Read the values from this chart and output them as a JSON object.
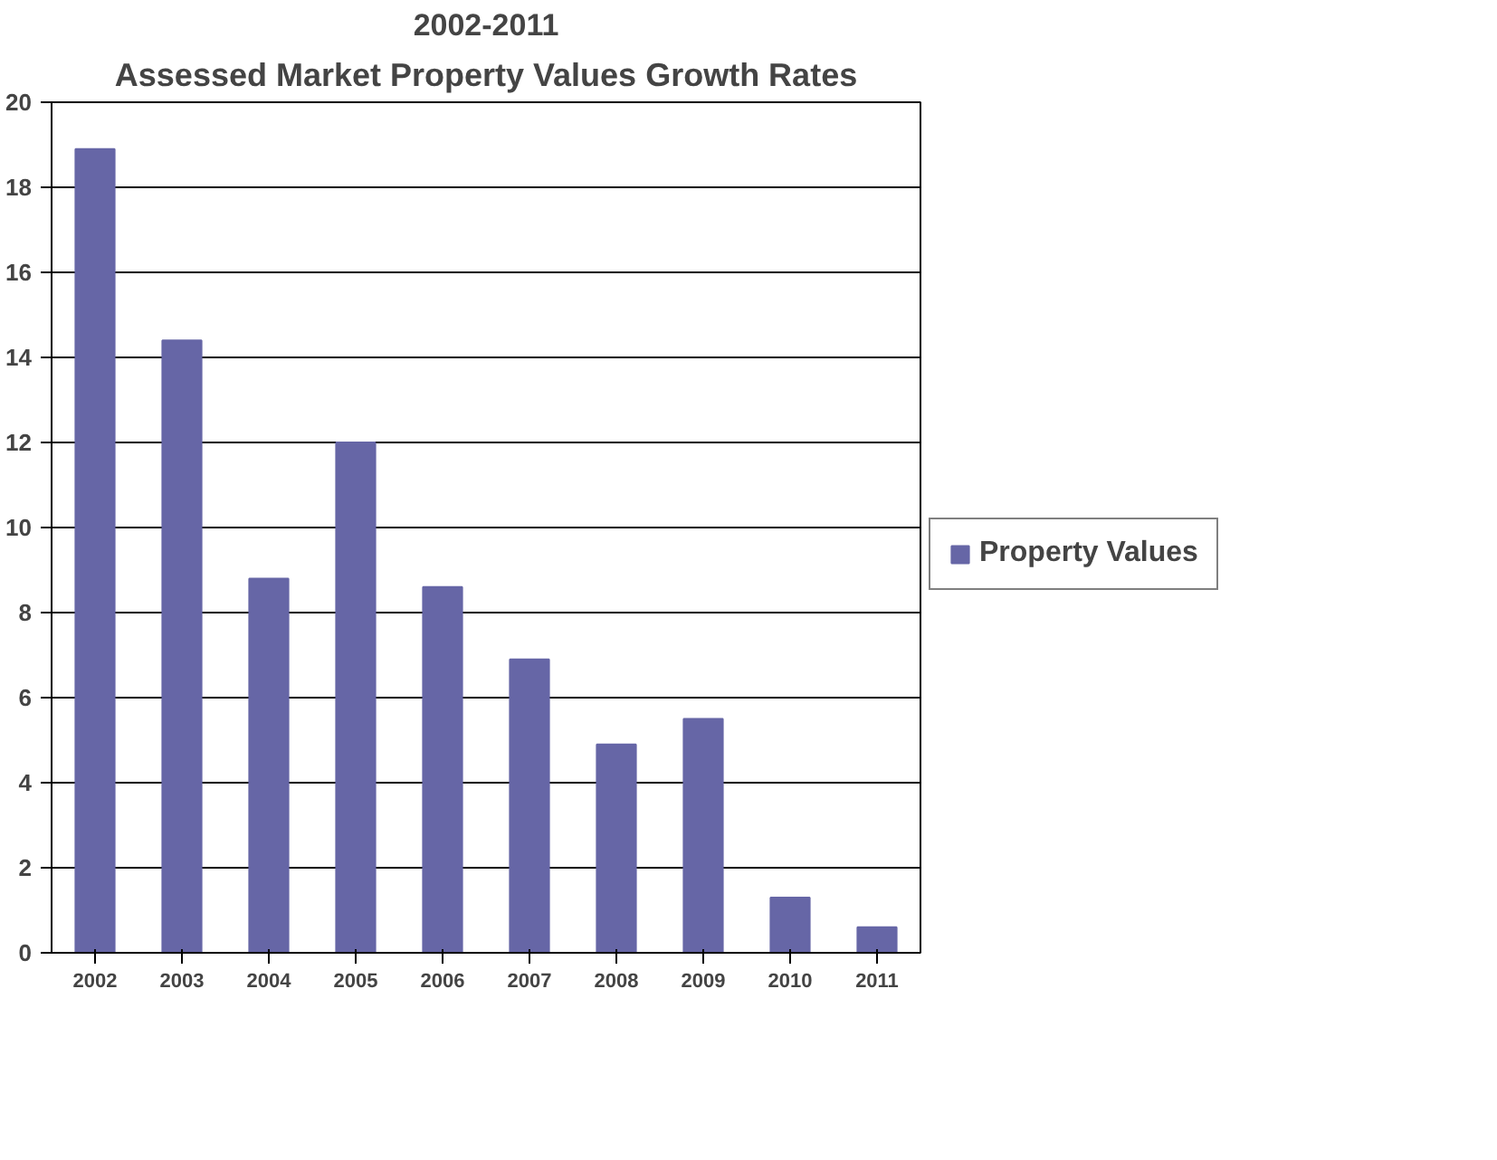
{
  "chart_data": {
    "type": "bar",
    "title": "2002-2011",
    "subtitle": "Assessed Market Property Values Growth Rates",
    "categories": [
      "2002",
      "2003",
      "2004",
      "2005",
      "2006",
      "2007",
      "2008",
      "2009",
      "2010",
      "2011"
    ],
    "series": [
      {
        "name": "Property Values",
        "color": "#6666a6",
        "values": [
          18.9,
          14.4,
          8.8,
          12.0,
          8.6,
          6.9,
          4.9,
          5.5,
          1.3,
          0.6
        ]
      }
    ],
    "ylim": [
      0,
      20
    ],
    "yticks": [
      0,
      2,
      4,
      6,
      8,
      10,
      12,
      14,
      16,
      18,
      20
    ],
    "grid": "y",
    "legend": "right"
  }
}
